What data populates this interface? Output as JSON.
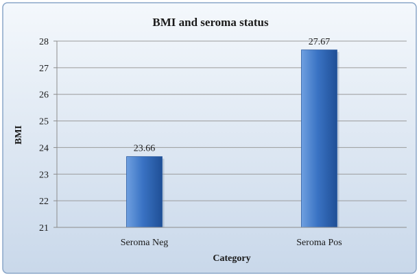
{
  "chart_data": {
    "type": "bar",
    "title": "BMI and seroma status",
    "xlabel": "Category",
    "ylabel": "BMI",
    "categories": [
      "Seroma Neg",
      "Seroma Pos"
    ],
    "values": [
      23.66,
      27.67
    ],
    "data_labels": [
      "23.66",
      "27.67"
    ],
    "ylim": [
      21,
      28
    ],
    "yticks": [
      21,
      22,
      23,
      24,
      25,
      26,
      27,
      28
    ],
    "grid": true,
    "legend": "none",
    "colors": {
      "bar": "#3a73c4",
      "bar_light": "#6fa0e0",
      "bar_dark": "#1f4f96",
      "background_top": "#f4f8fc",
      "background_bottom": "#c9d8ea",
      "frame": "#8aa6c8"
    }
  }
}
